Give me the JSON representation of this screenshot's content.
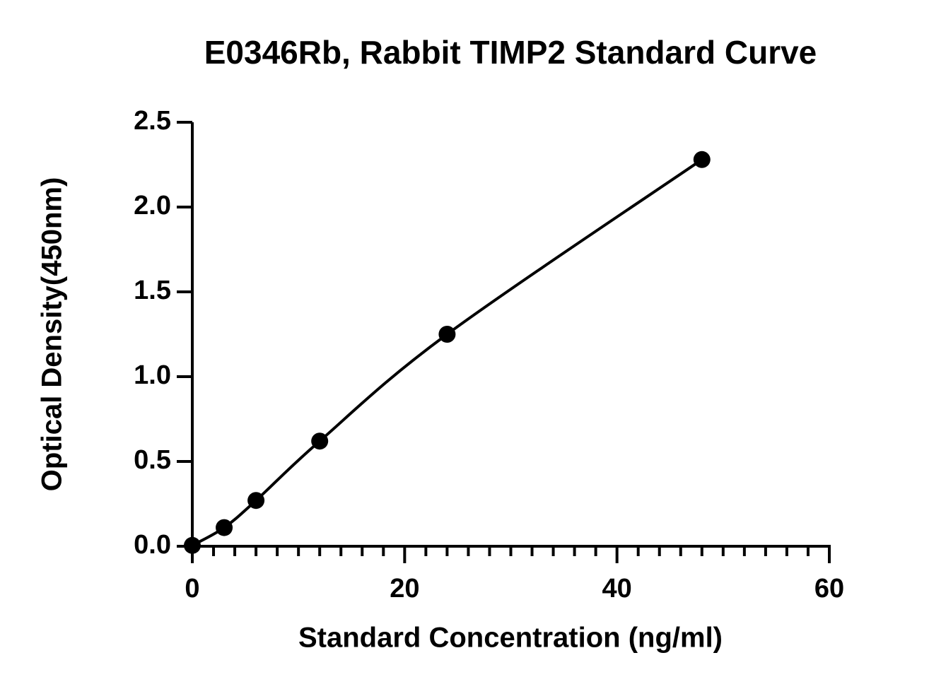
{
  "chart_data": {
    "type": "scatter",
    "title": "E0346Rb, Rabbit TIMP2 Standard Curve",
    "x_label": "Standard Concentration (ng/ml)",
    "y_label": "Optical Density(450nm)",
    "x": [
      0,
      3,
      6,
      12,
      24,
      48
    ],
    "series": [
      {
        "name": "TIMP2",
        "color": "#000000",
        "values": [
          0.005,
          0.11,
          0.27,
          0.62,
          1.25,
          2.28
        ]
      }
    ],
    "fit_line": true,
    "xlim": [
      0,
      60
    ],
    "xticks": [
      0,
      20,
      40,
      60
    ],
    "ylim": [
      0,
      2.5
    ],
    "yticks": [
      {
        "value": 0,
        "label": "0.0"
      },
      0.5,
      {
        "value": 1,
        "label": "1.0"
      },
      1.5,
      {
        "value": 2,
        "label": "2.0"
      },
      2.5
    ]
  }
}
